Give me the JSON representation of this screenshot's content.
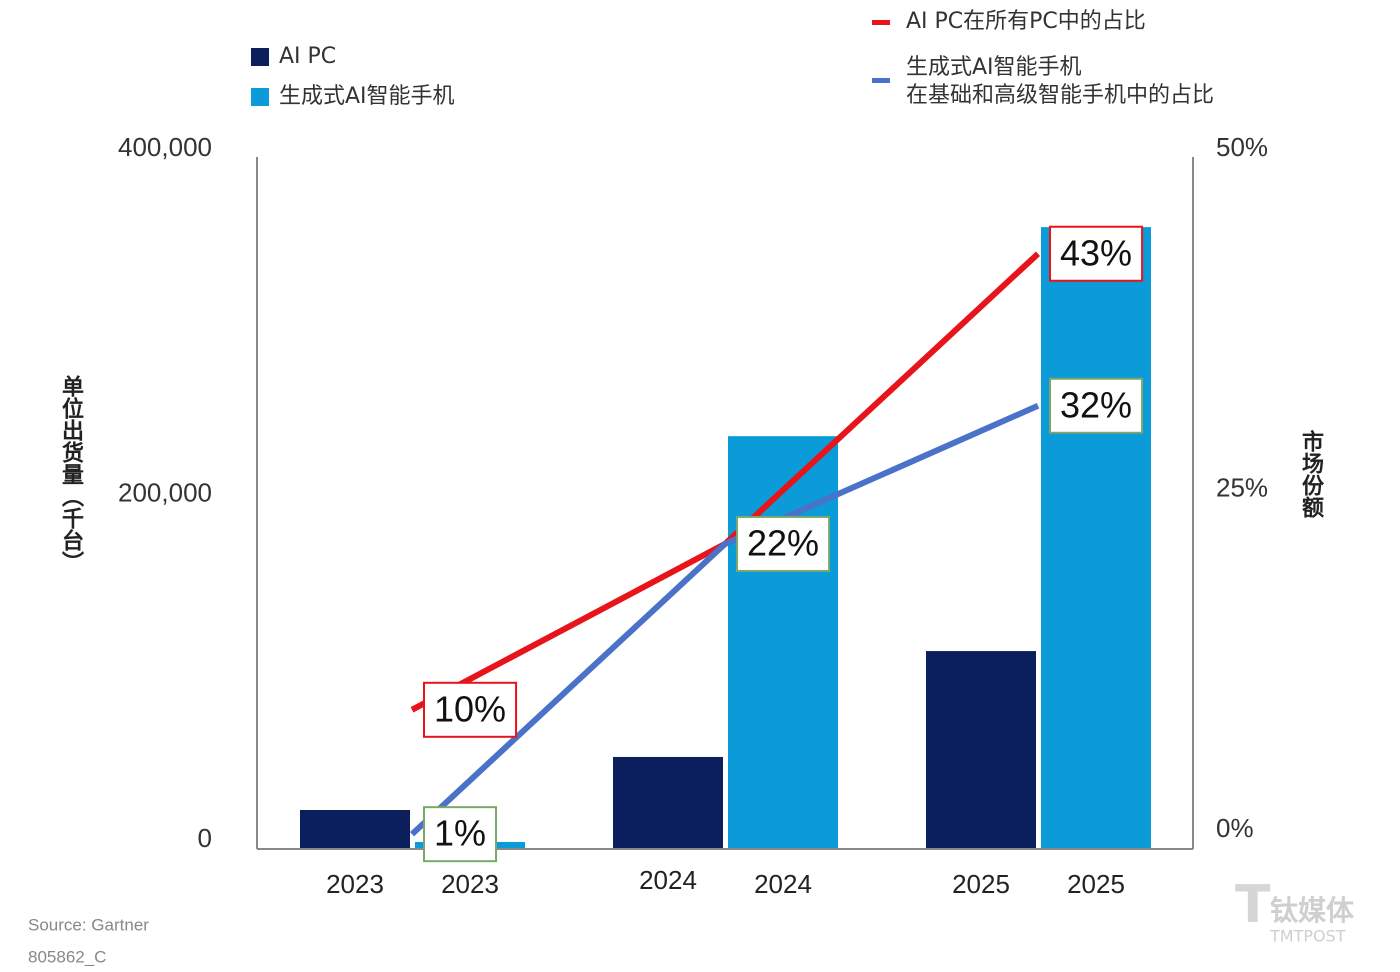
{
  "chart_data": {
    "type": "bar_line",
    "categories": [
      "2023",
      "2024",
      "2025"
    ],
    "series": [
      {
        "name": "AI PC",
        "color": "#0a1f5c",
        "values": [
          22000,
          52700,
          114000
        ]
      },
      {
        "name": "生成式AI智能手机",
        "color": "#0a9bd8",
        "values": [
          3500,
          238400,
          359400
        ]
      },
      {
        "name": "AI PC在所有PC中的占比",
        "color": "#e8141c",
        "axis": "y2",
        "type": "line",
        "values": [
          10,
          22,
          43
        ],
        "value_labels": [
          "10%",
          "22%",
          "43%"
        ]
      },
      {
        "name": "生成式AI智能手机\n在基础和高级智能手机中的占比",
        "color": "#4a72c8",
        "axis": "y2",
        "type": "line",
        "values": [
          1,
          22,
          32
        ],
        "value_labels": [
          "1%",
          null,
          "32%"
        ]
      }
    ],
    "ylabel": "单位出货量（千台）",
    "y2label": "市场份额",
    "ylim": [
      0,
      400000
    ],
    "yticks": [
      0,
      {
        "value": 200000,
        "label": "200,000"
      },
      {
        "value": 400000,
        "label": "400,000"
      }
    ],
    "y2lim": [
      0,
      50
    ],
    "y2ticks": [
      {
        "value": 0,
        "label": "0%"
      },
      {
        "value": 25,
        "label": "25%"
      },
      {
        "value": 50,
        "label": "50%"
      }
    ],
    "source": "Source: Gartner",
    "code": "805862_C",
    "watermark": "钛媒体",
    "watermark_sub": "TMTPOST",
    "grid": false
  }
}
